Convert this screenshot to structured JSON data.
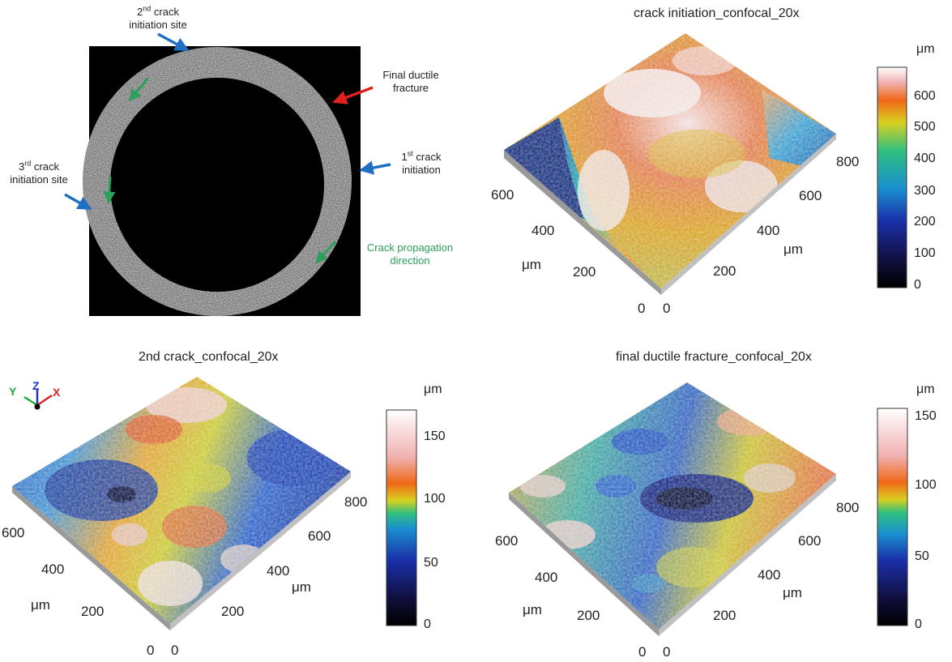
{
  "panels": {
    "fracture_overview": {
      "ann2": {
        "pre": "2",
        "sup": "nd",
        "post": " crack",
        "line2": "initiation site"
      },
      "ann_final": {
        "line1": "Final ductile",
        "line2": "fracture"
      },
      "ann1": {
        "pre": "1",
        "sup": "st",
        "post": " crack",
        "line2": "initiation"
      },
      "ann3": {
        "pre": "3",
        "sup": "rd",
        "post": " crack",
        "line2": "initiation site"
      },
      "ann_prop": {
        "line1": "Crack propagation",
        "line2": "direction"
      },
      "colors": {
        "blue_arrow": "#1f6fc4",
        "red_arrow": "#e0211f",
        "green_arrow": "#2ca05a",
        "prop_text": "#2ca05a"
      }
    },
    "surface_a": {
      "title": "crack initiation_confocal_20x",
      "unit": "μm",
      "x_ticks": [
        "0",
        "200",
        "400",
        "600",
        "800"
      ],
      "y_ticks": [
        "0",
        "200",
        "400",
        "600"
      ],
      "axis_unit_x": "μm",
      "axis_unit_y": "μm",
      "colorbar": {
        "unit": "μm",
        "ticks": [
          "0",
          "100",
          "200",
          "300",
          "400",
          "500",
          "600"
        ],
        "max": 690
      }
    },
    "surface_b": {
      "title": "2nd crack_confocal_20x",
      "unit": "μm",
      "x_ticks": [
        "0",
        "200",
        "400",
        "600",
        "800"
      ],
      "y_ticks": [
        "0",
        "200",
        "400",
        "600"
      ],
      "axis_unit_x": "μm",
      "axis_unit_y": "μm",
      "triad": {
        "x": "X",
        "y": "Y",
        "z": "Z"
      },
      "colorbar": {
        "unit": "μm",
        "ticks": [
          "0",
          "50",
          "100",
          "150"
        ],
        "max": 170
      }
    },
    "surface_c": {
      "title": "final ductile fracture_confocal_20x",
      "unit": "μm",
      "x_ticks": [
        "0",
        "200",
        "400",
        "600",
        "800"
      ],
      "y_ticks": [
        "0",
        "200",
        "400",
        "600"
      ],
      "axis_unit_x": "μm",
      "axis_unit_y": "μm",
      "colorbar": {
        "unit": "μm",
        "ticks": [
          "0",
          "50",
          "100",
          "150"
        ],
        "max": 158
      }
    }
  }
}
